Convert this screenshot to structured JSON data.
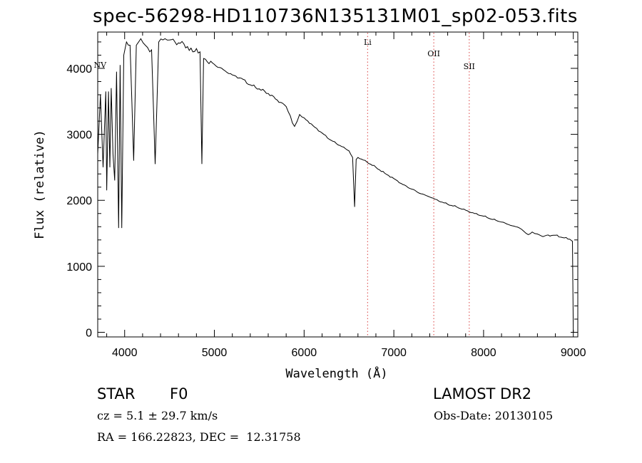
{
  "chart_data": {
    "type": "line",
    "title": "spec-56298-HD110736N135131M01_sp02-053.fits",
    "xlabel": "Wavelength (Å)",
    "ylabel": "Flux (relative)",
    "xlim": [
      3700,
      9050
    ],
    "ylim": [
      -70,
      4550
    ],
    "x_ticks": [
      4000,
      5000,
      6000,
      7000,
      8000,
      9000
    ],
    "y_ticks": [
      0,
      1000,
      2000,
      3000,
      4000
    ],
    "line_markers": [
      {
        "label": "NV",
        "x": 3710
      },
      {
        "label": "Li",
        "x": 6708,
        "dotted": true
      },
      {
        "label": "OII",
        "x": 7445,
        "dotted": true
      },
      {
        "label": "SII",
        "x": 7840,
        "dotted": true
      }
    ],
    "series": [
      {
        "x": [
          3700,
          3730,
          3760,
          3790,
          3800,
          3820,
          3835,
          3850,
          3870,
          3889,
          3910,
          3933,
          3950,
          3968,
          3990,
          4020,
          4060,
          4101,
          4130,
          4180,
          4230,
          4280,
          4300,
          4340,
          4380,
          4450,
          4500,
          4560,
          4620,
          4700,
          4760,
          4800,
          4840,
          4861,
          4880,
          4920,
          5000,
          5100,
          5200,
          5300,
          5400,
          5500,
          5600,
          5700,
          5800,
          5893,
          5950,
          6000,
          6100,
          6200,
          6300,
          6400,
          6500,
          6540,
          6563,
          6580,
          6600,
          6700,
          6800,
          6900,
          7000,
          7100,
          7200,
          7300,
          7400,
          7500,
          7600,
          7700,
          7800,
          7900,
          8000,
          8100,
          8200,
          8300,
          8400,
          8498,
          8542,
          8600,
          8662,
          8700,
          8800,
          8900,
          8960,
          8990,
          9000
        ],
        "y": [
          2700,
          3600,
          2500,
          3650,
          2150,
          3650,
          2500,
          3700,
          2700,
          2300,
          3950,
          1580,
          4050,
          1580,
          4200,
          4400,
          4350,
          2600,
          4350,
          4450,
          4350,
          4250,
          4280,
          2550,
          4400,
          4450,
          4430,
          4400,
          4380,
          4330,
          4250,
          4300,
          4250,
          2550,
          4150,
          4100,
          4060,
          3980,
          3900,
          3850,
          3750,
          3690,
          3620,
          3520,
          3420,
          3120,
          3300,
          3250,
          3130,
          3020,
          2910,
          2830,
          2750,
          2650,
          1900,
          2620,
          2650,
          2580,
          2500,
          2410,
          2330,
          2240,
          2170,
          2100,
          2050,
          1990,
          1940,
          1900,
          1850,
          1800,
          1760,
          1710,
          1670,
          1620,
          1580,
          1480,
          1520,
          1490,
          1450,
          1470,
          1470,
          1430,
          1410,
          1380,
          0
        ]
      }
    ]
  },
  "footer": {
    "object_type": "STAR",
    "subclass": "F0",
    "redshift": "cz = 5.1 ± 29.7 km/s",
    "coords": "RA = 166.22823, DEC =  12.31758",
    "survey": "LAMOST DR2",
    "obs_date": "Obs-Date: 20130105"
  }
}
